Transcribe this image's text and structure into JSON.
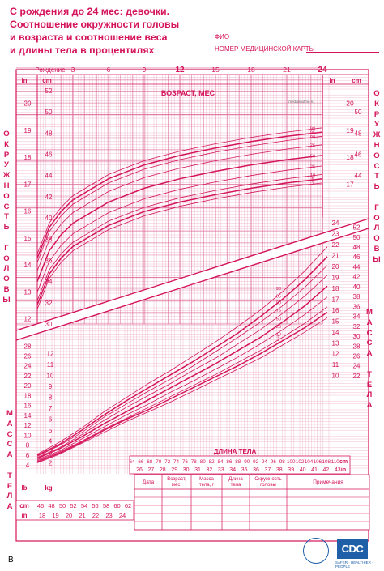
{
  "title_lines": [
    "С рождения до 24 мес: девочки.",
    "Соотношение окружности головы",
    "и возраста и соотношение веса",
    "и длины тела в процентилях"
  ],
  "form": {
    "name_label": "ФИО",
    "record_label": "НОМЕР МЕДИЦИНСКОЙ КАРТЫ"
  },
  "side_labels": {
    "head_left": "ОКРУЖНОСТЬ ГОЛОВЫ",
    "head_right": "ОКРУЖНОСТЬ ГОЛОВЫ",
    "weight_left": "МАССА ТЕЛА",
    "weight_right": "МАССА ТЕЛА"
  },
  "age_axis": {
    "birth_label": "Рождение",
    "title": "ВОЗРАСТ, МЕС",
    "major_ticks": [
      "3",
      "6",
      "9",
      "12",
      "15",
      "18",
      "21",
      "24"
    ],
    "bold_ticks": [
      "12",
      "24"
    ]
  },
  "head_units": {
    "in": "in",
    "cm": "cm"
  },
  "weight_units": {
    "lb": "lb",
    "kg": "kg"
  },
  "length_units": {
    "cm": "cm",
    "in": "in"
  },
  "length_title": "ДЛИНА ТЕЛА",
  "table_headers": [
    "Дата",
    "Возраст, мес.",
    "Масса тела, г",
    "Длина тела",
    "Окружность головы",
    "Примечания"
  ],
  "watermark": "medaboutme.ru",
  "corner_mark": "B",
  "logo": {
    "text": "CDC",
    "subtitle": "SAFER · HEALTHIER · PEOPLE"
  },
  "colors": {
    "primary": "#d4145a",
    "grid": "#e9a3bf",
    "logo": "#1f5fa8"
  },
  "chart_data": [
    {
      "type": "line",
      "title": "Соотношение окружности головы и возраста",
      "xlabel": "ВОЗРАСТ, МЕС",
      "ylabel": "ОКРУЖНОСТЬ ГОЛОВЫ",
      "xlim": [
        0,
        24
      ],
      "ylim": [
        30,
        52
      ],
      "y_ticks_cm": [
        30,
        32,
        34,
        36,
        38,
        40,
        42,
        44,
        46,
        48,
        50,
        52
      ],
      "y_ticks_in": [
        12,
        13,
        14,
        15,
        16,
        17,
        18,
        19,
        20
      ],
      "right_y_ticks_cm": [
        44,
        46,
        48,
        50
      ],
      "right_y_ticks_in": [
        17,
        18,
        19,
        20
      ],
      "x": [
        0,
        1,
        2,
        3,
        6,
        9,
        12,
        15,
        18,
        21,
        24
      ],
      "percentile_labels": [
        "98",
        "95",
        "90",
        "75",
        "50",
        "25",
        "10",
        "5",
        "2"
      ],
      "series": [
        {
          "name": "98",
          "values": [
            36.6,
            39.5,
            41.0,
            42.1,
            44.1,
            45.4,
            46.3,
            47.0,
            47.6,
            48.1,
            48.5
          ]
        },
        {
          "name": "95",
          "values": [
            36.2,
            39.1,
            40.6,
            41.7,
            43.7,
            45.0,
            45.9,
            46.6,
            47.2,
            47.7,
            48.1
          ]
        },
        {
          "name": "90",
          "values": [
            35.8,
            38.7,
            40.2,
            41.3,
            43.3,
            44.6,
            45.5,
            46.2,
            46.8,
            47.3,
            47.7
          ]
        },
        {
          "name": "75",
          "values": [
            35.0,
            37.9,
            39.4,
            40.5,
            42.5,
            43.8,
            44.7,
            45.4,
            46.0,
            46.5,
            46.9
          ]
        },
        {
          "name": "50",
          "values": [
            34.0,
            36.9,
            38.4,
            39.5,
            41.5,
            42.8,
            43.7,
            44.4,
            45.0,
            45.5,
            45.9
          ]
        },
        {
          "name": "25",
          "values": [
            33.0,
            35.9,
            37.4,
            38.5,
            40.5,
            41.8,
            42.7,
            43.4,
            44.0,
            44.5,
            44.9
          ]
        },
        {
          "name": "10",
          "values": [
            32.2,
            35.1,
            36.6,
            37.7,
            39.7,
            41.0,
            41.9,
            42.6,
            43.2,
            43.7,
            44.1
          ]
        },
        {
          "name": "5",
          "values": [
            31.8,
            34.7,
            36.2,
            37.3,
            39.3,
            40.6,
            41.5,
            42.2,
            42.8,
            43.3,
            43.7
          ]
        },
        {
          "name": "2",
          "values": [
            31.4,
            34.3,
            35.8,
            36.9,
            38.9,
            40.2,
            41.1,
            41.8,
            42.4,
            42.9,
            43.3
          ]
        }
      ]
    },
    {
      "type": "line",
      "title": "Соотношение веса и длины тела",
      "xlabel": "ДЛИНА ТЕЛА",
      "ylabel": "МАССА ТЕЛА",
      "xlim": [
        45,
        110
      ],
      "ylim": [
        1,
        24
      ],
      "x_ticks_cm": [
        64,
        66,
        68,
        70,
        72,
        74,
        76,
        78,
        80,
        82,
        84,
        86,
        88,
        90,
        92,
        94,
        96,
        98,
        100,
        102,
        104,
        106,
        108,
        110
      ],
      "x_ticks_in": [
        26,
        27,
        28,
        29,
        30,
        31,
        32,
        33,
        34,
        35,
        36,
        37,
        38,
        39,
        40,
        41,
        42,
        43
      ],
      "bottom_x_ticks_cm": [
        46,
        48,
        50,
        52,
        54,
        56,
        58,
        60,
        62
      ],
      "bottom_x_ticks_in": [
        18,
        19,
        20,
        21,
        22,
        23,
        24
      ],
      "y_ticks_kg": [
        2,
        3,
        4,
        5,
        6,
        7,
        8,
        9,
        10,
        11,
        12
      ],
      "y_ticks_lb": [
        4,
        6,
        8,
        10,
        12,
        14,
        16,
        18,
        20,
        22,
        24,
        26,
        28
      ],
      "right_y_ticks_kg": [
        10,
        11,
        12,
        13,
        14,
        15,
        16,
        17,
        18,
        19,
        20,
        21,
        22,
        23,
        24
      ],
      "right_y_ticks_lb": [
        22,
        24,
        26,
        28,
        30,
        32,
        34,
        36,
        38,
        40,
        42,
        44,
        46,
        48,
        50,
        52
      ],
      "x": [
        45,
        50,
        55,
        60,
        65,
        70,
        75,
        80,
        85,
        90,
        95,
        100,
        105,
        110
      ],
      "percentile_labels": [
        "98",
        "95",
        "90",
        "75",
        "50",
        "25",
        "10",
        "5",
        "2"
      ],
      "series": [
        {
          "name": "98",
          "values": [
            2.8,
            3.9,
            5.2,
            6.7,
            8.0,
            9.3,
            10.5,
            11.8,
            13.1,
            14.5,
            16.0,
            17.7,
            19.6,
            21.8
          ]
        },
        {
          "name": "95",
          "values": [
            2.7,
            3.7,
            5.0,
            6.4,
            7.7,
            8.9,
            10.1,
            11.3,
            12.6,
            13.9,
            15.4,
            17.0,
            18.8,
            20.9
          ]
        },
        {
          "name": "90",
          "values": [
            2.6,
            3.6,
            4.8,
            6.2,
            7.4,
            8.6,
            9.7,
            10.9,
            12.2,
            13.5,
            14.9,
            16.4,
            18.1,
            20.1
          ]
        },
        {
          "name": "75",
          "values": [
            2.5,
            3.4,
            4.6,
            5.9,
            7.1,
            8.2,
            9.3,
            10.5,
            11.6,
            12.9,
            14.2,
            15.7,
            17.3,
            19.2
          ]
        },
        {
          "name": "50",
          "values": [
            2.4,
            3.3,
            4.4,
            5.6,
            6.7,
            7.8,
            8.9,
            10.0,
            11.1,
            12.3,
            13.5,
            14.9,
            16.4,
            18.2
          ]
        },
        {
          "name": "25",
          "values": [
            2.3,
            3.1,
            4.2,
            5.3,
            6.4,
            7.4,
            8.5,
            9.5,
            10.6,
            11.7,
            12.9,
            14.2,
            15.6,
            17.2
          ]
        },
        {
          "name": "10",
          "values": [
            2.2,
            3.0,
            4.0,
            5.1,
            6.1,
            7.1,
            8.1,
            9.1,
            10.1,
            11.2,
            12.3,
            13.5,
            14.8,
            16.3
          ]
        },
        {
          "name": "5",
          "values": [
            2.1,
            2.9,
            3.9,
            5.0,
            6.0,
            6.9,
            7.9,
            8.9,
            9.9,
            10.9,
            12.0,
            13.2,
            14.4,
            15.8
          ]
        },
        {
          "name": "2",
          "values": [
            2.0,
            2.8,
            3.8,
            4.8,
            5.8,
            6.7,
            7.6,
            8.6,
            9.6,
            10.6,
            11.6,
            12.8,
            14.0,
            15.3
          ]
        }
      ]
    }
  ]
}
